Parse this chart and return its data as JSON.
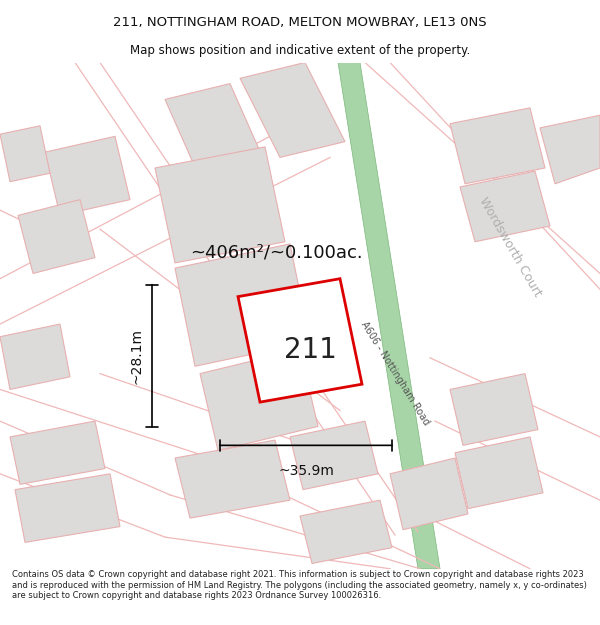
{
  "title_line1": "211, NOTTINGHAM ROAD, MELTON MOWBRAY, LE13 0NS",
  "title_line2": "Map shows position and indicative extent of the property.",
  "area_text": "~406m²/~0.100ac.",
  "label_211": "211",
  "dim_width": "~35.9m",
  "dim_height": "~28.1m",
  "road_label": "A606 - Nottingham Road",
  "court_label": "Wordsworth Court",
  "footer_text": "Contains OS data © Crown copyright and database right 2021. This information is subject to Crown copyright and database rights 2023 and is reproduced with the permission of HM Land Registry. The polygons (including the associated geometry, namely x, y co-ordinates) are subject to Crown copyright and database rights 2023 Ordnance Survey 100026316.",
  "bg_color": "#ffffff",
  "map_bg": "#f8f4f4",
  "road_green_fill": "#a8d5a8",
  "road_green_edge": "#7ab87a",
  "plot_outline_color": "#dd0000",
  "building_fill": "#dddada",
  "building_edge": "#e8b0b0",
  "road_line_color": "#f0b8b8",
  "wc_label_color": "#b0b0b0",
  "road_label_color": "#555555"
}
